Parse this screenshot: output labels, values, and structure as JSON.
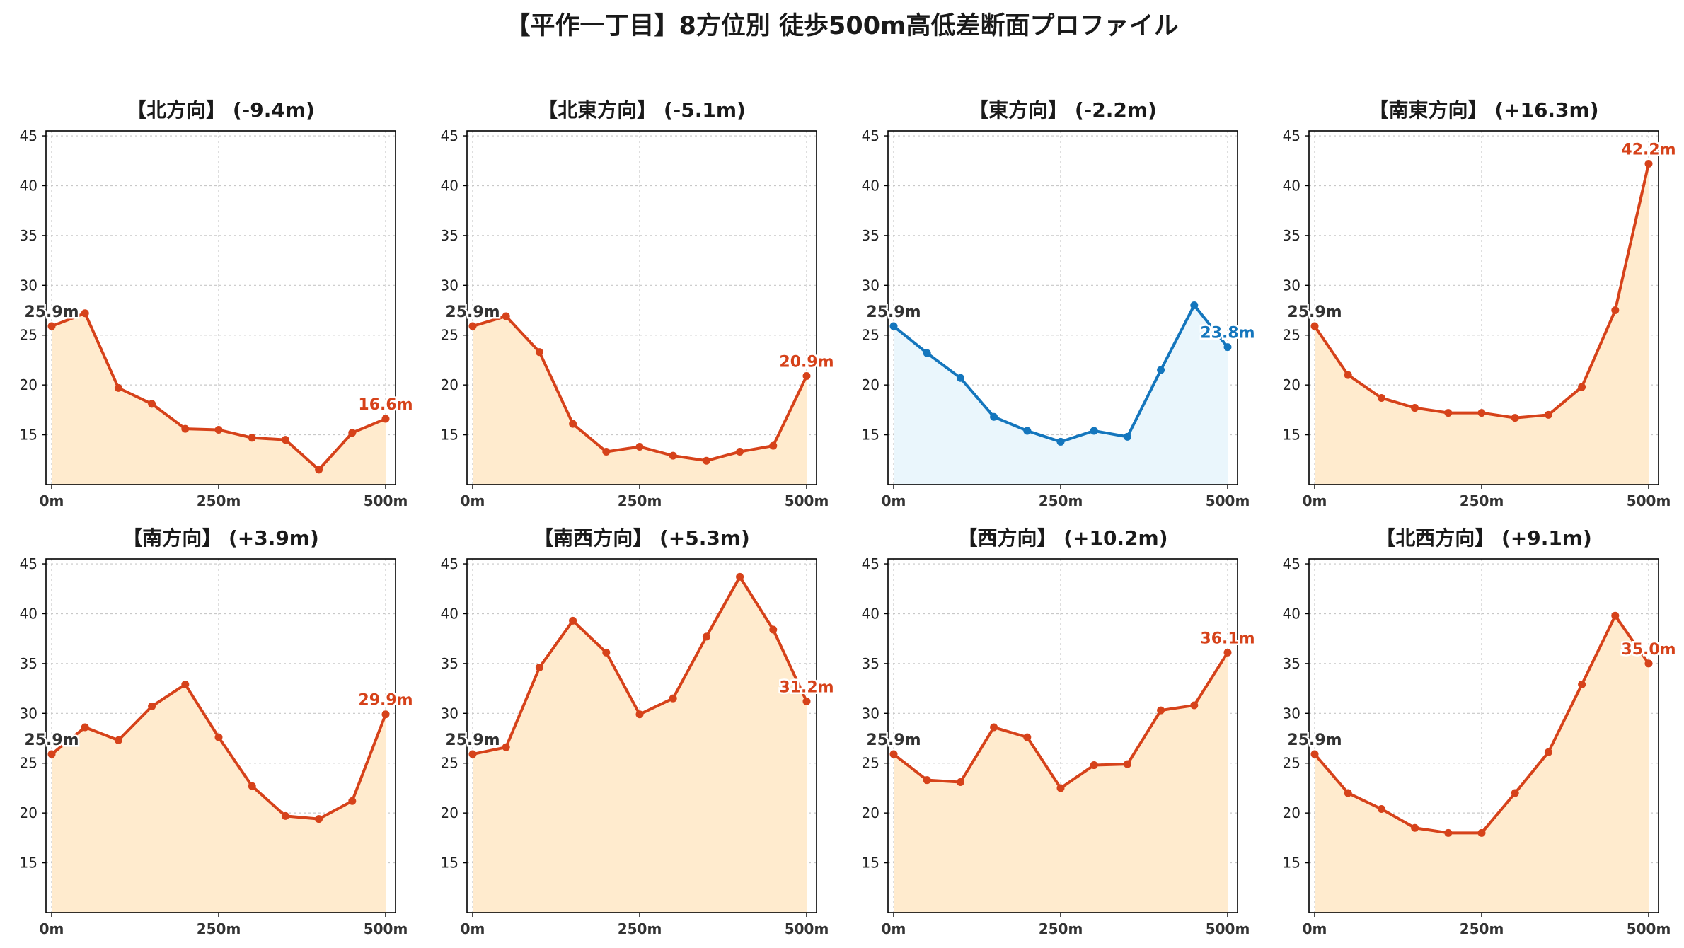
{
  "title": "【平作一丁目】8方位別 徒歩500m高低差断面プロファイル",
  "chart_data": [
    {
      "type": "line",
      "title": "【北方向】 (-9.4m)",
      "color": "#d6421a",
      "fill": "#ffebce",
      "x": [
        0,
        50,
        100,
        150,
        200,
        250,
        300,
        350,
        400,
        450,
        500
      ],
      "y": [
        25.9,
        27.2,
        19.7,
        18.1,
        15.6,
        15.5,
        14.7,
        14.5,
        11.5,
        15.2,
        16.6
      ],
      "start_label": "25.9m",
      "end_label": "16.6m",
      "xticks": [
        "0m",
        "250m",
        "500m"
      ],
      "yticks": [
        15,
        20,
        25,
        30,
        35,
        40,
        45
      ],
      "ylim": [
        10,
        45.5
      ],
      "grid": true
    },
    {
      "type": "line",
      "title": "【北東方向】 (-5.1m)",
      "color": "#d6421a",
      "fill": "#ffebce",
      "x": [
        0,
        50,
        100,
        150,
        200,
        250,
        300,
        350,
        400,
        450,
        500
      ],
      "y": [
        25.9,
        26.9,
        23.3,
        16.1,
        13.3,
        13.8,
        12.9,
        12.4,
        13.3,
        13.9,
        20.9
      ],
      "start_label": "25.9m",
      "end_label": "20.9m",
      "xticks": [
        "0m",
        "250m",
        "500m"
      ],
      "yticks": [
        15,
        20,
        25,
        30,
        35,
        40,
        45
      ],
      "ylim": [
        10,
        45.5
      ],
      "grid": true
    },
    {
      "type": "line",
      "title": "【東方向】 (-2.2m)",
      "color": "#1476bd",
      "fill": "#eaf6fc",
      "x": [
        0,
        50,
        100,
        150,
        200,
        250,
        300,
        350,
        400,
        450,
        500
      ],
      "y": [
        25.9,
        23.2,
        20.7,
        16.8,
        15.4,
        14.3,
        15.4,
        14.8,
        21.5,
        28.0,
        23.8
      ],
      "start_label": "25.9m",
      "end_label": "23.8m",
      "xticks": [
        "0m",
        "250m",
        "500m"
      ],
      "yticks": [
        15,
        20,
        25,
        30,
        35,
        40,
        45
      ],
      "ylim": [
        10,
        45.5
      ],
      "grid": true
    },
    {
      "type": "line",
      "title": "【南東方向】 (+16.3m)",
      "color": "#d6421a",
      "fill": "#ffebce",
      "x": [
        0,
        50,
        100,
        150,
        200,
        250,
        300,
        350,
        400,
        450,
        500
      ],
      "y": [
        25.9,
        21.0,
        18.7,
        17.7,
        17.2,
        17.2,
        16.7,
        17.0,
        19.8,
        27.5,
        42.2
      ],
      "start_label": "25.9m",
      "end_label": "42.2m",
      "xticks": [
        "0m",
        "250m",
        "500m"
      ],
      "yticks": [
        15,
        20,
        25,
        30,
        35,
        40,
        45
      ],
      "ylim": [
        10,
        45.5
      ],
      "grid": true
    },
    {
      "type": "line",
      "title": "【南方向】 (+3.9m)",
      "color": "#d6421a",
      "fill": "#ffebce",
      "x": [
        0,
        50,
        100,
        150,
        200,
        250,
        300,
        350,
        400,
        450,
        500
      ],
      "y": [
        25.9,
        28.6,
        27.3,
        30.7,
        32.9,
        27.6,
        22.7,
        19.7,
        19.4,
        21.2,
        29.9
      ],
      "start_label": "25.9m",
      "end_label": "29.9m",
      "xticks": [
        "0m",
        "250m",
        "500m"
      ],
      "yticks": [
        15,
        20,
        25,
        30,
        35,
        40,
        45
      ],
      "ylim": [
        10,
        45.5
      ],
      "grid": true
    },
    {
      "type": "line",
      "title": "【南西方向】 (+5.3m)",
      "color": "#d6421a",
      "fill": "#ffebce",
      "x": [
        0,
        50,
        100,
        150,
        200,
        250,
        300,
        350,
        400,
        450,
        500
      ],
      "y": [
        25.9,
        26.6,
        34.6,
        39.3,
        36.1,
        29.9,
        31.5,
        37.7,
        43.7,
        38.4,
        31.2
      ],
      "start_label": "25.9m",
      "end_label": "31.2m",
      "xticks": [
        "0m",
        "250m",
        "500m"
      ],
      "yticks": [
        15,
        20,
        25,
        30,
        35,
        40,
        45
      ],
      "ylim": [
        10,
        45.5
      ],
      "grid": true
    },
    {
      "type": "line",
      "title": "【西方向】 (+10.2m)",
      "color": "#d6421a",
      "fill": "#ffebce",
      "x": [
        0,
        50,
        100,
        150,
        200,
        250,
        300,
        350,
        400,
        450,
        500
      ],
      "y": [
        25.9,
        23.3,
        23.1,
        28.6,
        27.6,
        22.5,
        24.8,
        24.9,
        30.3,
        30.8,
        36.1
      ],
      "start_label": "25.9m",
      "end_label": "36.1m",
      "xticks": [
        "0m",
        "250m",
        "500m"
      ],
      "yticks": [
        15,
        20,
        25,
        30,
        35,
        40,
        45
      ],
      "ylim": [
        10,
        45.5
      ],
      "grid": true
    },
    {
      "type": "line",
      "title": "【北西方向】 (+9.1m)",
      "color": "#d6421a",
      "fill": "#ffebce",
      "x": [
        0,
        50,
        100,
        150,
        200,
        250,
        300,
        350,
        400,
        450,
        500
      ],
      "y": [
        25.9,
        22.0,
        20.4,
        18.5,
        18.0,
        18.0,
        22.0,
        26.1,
        32.9,
        39.8,
        35.0
      ],
      "start_label": "25.9m",
      "end_label": "35.0m",
      "xticks": [
        "0m",
        "250m",
        "500m"
      ],
      "yticks": [
        15,
        20,
        25,
        30,
        35,
        40,
        45
      ],
      "ylim": [
        10,
        45.5
      ],
      "grid": true
    }
  ],
  "colors": {
    "start_label": "#333333",
    "grid": "#c8c8c8",
    "axis": "#000000"
  }
}
